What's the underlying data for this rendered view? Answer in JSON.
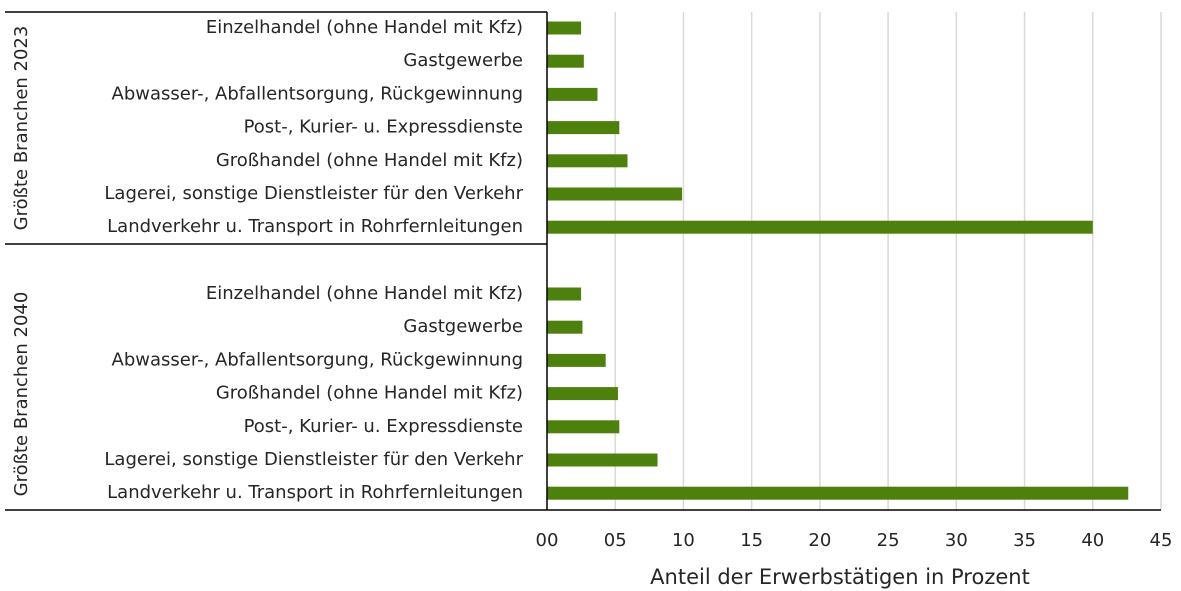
{
  "chart_data": {
    "type": "bar",
    "orientation": "horizontal",
    "color": "#4e800e",
    "grid": true,
    "xlabel": "Anteil der Erwerbstätigen in Prozent",
    "xlim": [
      0,
      45
    ],
    "xticks": [
      {
        "value": 0,
        "label": "00"
      },
      {
        "value": 5,
        "label": "05"
      },
      10,
      15,
      20,
      25,
      30,
      35,
      40,
      45
    ],
    "groups": [
      {
        "name": "Größte Branchen 2023",
        "categories": [
          "Einzelhandel (ohne Handel mit Kfz)",
          "Gastgewerbe",
          "Abwasser-, Abfallentsorgung, Rückgewinnung",
          "Post-, Kurier- u. Expressdienste",
          "Großhandel (ohne Handel mit Kfz)",
          "Lagerei, sonstige Dienstleister für den Verkehr",
          "Landverkehr u. Transport in Rohrfernleitungen"
        ],
        "values": [
          2.5,
          2.7,
          3.7,
          5.3,
          5.9,
          9.9,
          40
        ]
      },
      {
        "name": "Größte Branchen 2040",
        "categories": [
          "Einzelhandel (ohne Handel mit Kfz)",
          "Gastgewerbe",
          "Abwasser-, Abfallentsorgung, Rückgewinnung",
          "Großhandel (ohne Handel mit Kfz)",
          "Post-, Kurier- u. Expressdienste",
          "Lagerei, sonstige Dienstleister für den Verkehr",
          "Landverkehr u. Transport in Rohrfernleitungen"
        ],
        "values": [
          2.5,
          2.6,
          4.3,
          5.2,
          5.3,
          8.1,
          42.6
        ]
      }
    ]
  }
}
